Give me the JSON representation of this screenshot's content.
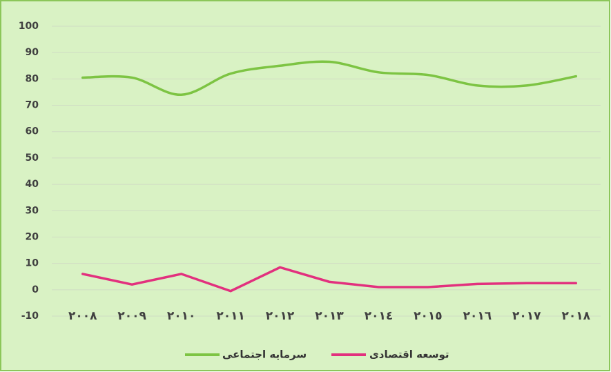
{
  "chart_data": {
    "type": "line",
    "categories": [
      "٢٠٠٨",
      "٢٠٠٩",
      "٢٠١٠",
      "٢٠١١",
      "٢٠١٢",
      "٢٠١٣",
      "٢٠١٤",
      "٢٠١٥",
      "٢٠١٦",
      "٢٠١٧",
      "٢٠١٨"
    ],
    "series": [
      {
        "name": "سرمایه اجتماعی",
        "color": "#7dc443",
        "smooth": true,
        "values": [
          80.5,
          80.5,
          74,
          82,
          85,
          86.5,
          82.5,
          81.5,
          77.5,
          77.5,
          81
        ]
      },
      {
        "name": "توسعه اقتصادی",
        "color": "#e2307e",
        "smooth": false,
        "values": [
          6,
          2,
          6,
          -0.5,
          8.5,
          3,
          1,
          1,
          2.2,
          2.5,
          2.5
        ]
      }
    ],
    "ylim": [
      -10,
      100
    ],
    "yticks": [
      -10,
      0,
      10,
      20,
      30,
      40,
      50,
      60,
      70,
      80,
      90,
      100
    ],
    "grid": true
  }
}
